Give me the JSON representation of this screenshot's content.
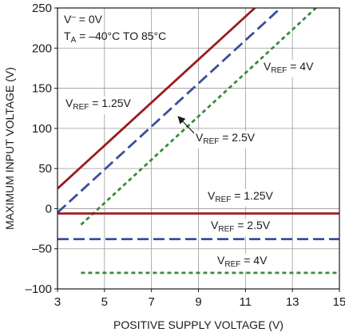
{
  "chart_data": {
    "type": "line",
    "xlabel": "POSITIVE SUPPLY VOLTAGE (V)",
    "ylabel": "MAXIMUM INPUT VOLTAGE (V)",
    "xlim": [
      3,
      15
    ],
    "ylim": [
      -100,
      250
    ],
    "xticks": [
      3,
      5,
      7,
      9,
      11,
      13,
      15
    ],
    "yticks": [
      -100,
      -50,
      0,
      50,
      100,
      150,
      200,
      250
    ],
    "grid": true,
    "conditions": [
      {
        "sym": "V",
        "sup": "–",
        "rest": " = 0V"
      },
      {
        "sym": "T",
        "sub": "A",
        "rest": " = –40°C TO 85°C"
      }
    ],
    "series": [
      {
        "name": "V_REF = 1.25V (max)",
        "color": "#9b1b1f",
        "style": "solid",
        "x": [
          3,
          11.4
        ],
        "y": [
          25,
          250
        ]
      },
      {
        "name": "V_REF = 2.5V (max)",
        "color": "#3a4f9a",
        "style": "dashed",
        "x": [
          3,
          12.5
        ],
        "y": [
          -5,
          250
        ]
      },
      {
        "name": "V_REF = 4V (max)",
        "color": "#3a8a3a",
        "style": "dotted",
        "x": [
          4,
          14
        ],
        "y": [
          -20,
          250
        ]
      },
      {
        "name": "V_REF = 1.25V (min)",
        "color": "#9b1b1f",
        "style": "solid",
        "x": [
          3,
          15
        ],
        "y": [
          -6,
          -6
        ]
      },
      {
        "name": "V_REF = 2.5V (min)",
        "color": "#3a4f9a",
        "style": "dashed",
        "x": [
          3,
          15
        ],
        "y": [
          -38,
          -38
        ]
      },
      {
        "name": "V_REF = 4V (min)",
        "color": "#3a8a3a",
        "style": "dotted",
        "x": [
          4,
          15
        ],
        "y": [
          -80,
          -80
        ]
      }
    ],
    "labels": [
      {
        "sym": "V",
        "sub": "REF",
        "rest": " = 4V"
      },
      {
        "sym": "V",
        "sub": "REF",
        "rest": " = 1.25V"
      },
      {
        "sym": "V",
        "sub": "REF",
        "rest": " = 2.5V"
      },
      {
        "sym": "V",
        "sub": "REF",
        "rest": " = 1.25V"
      },
      {
        "sym": "V",
        "sub": "REF",
        "rest": " = 2.5V"
      },
      {
        "sym": "V",
        "sub": "REF",
        "rest": " = 4V"
      }
    ]
  }
}
